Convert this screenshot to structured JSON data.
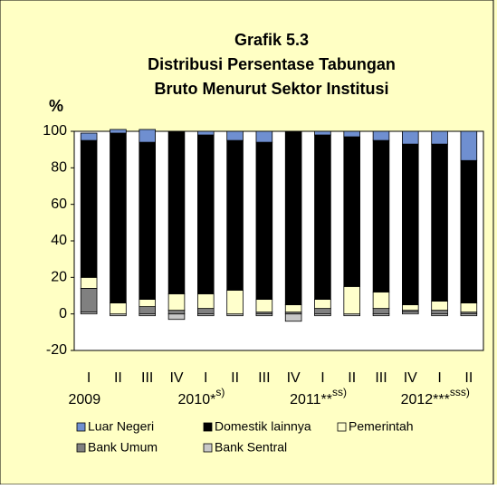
{
  "chart_data": {
    "type": "stacked_bar",
    "title": [
      "Grafik 5.3",
      "Distribusi Persentase Tabungan",
      "Bruto  Menurut Sektor Institusi"
    ],
    "y_label": "%",
    "categories": [
      "I",
      "II",
      "III",
      "IV",
      "I",
      "II",
      "III",
      "IV",
      "I",
      "II",
      "III",
      "IV",
      "I",
      "II"
    ],
    "groups": [
      {
        "label": "2009"
      },
      {
        "label": "2010*",
        "note": "s)"
      },
      {
        "label": "2011**",
        "note": "ss)"
      },
      {
        "label": "2012***",
        "note": "sss)"
      }
    ],
    "series": [
      {
        "name": "Luar Negeri",
        "color": "#6f8fd0",
        "values": [
          4,
          2,
          7,
          0,
          2,
          5,
          6,
          0,
          2,
          3,
          5,
          7,
          7,
          16
        ]
      },
      {
        "name": "Domestik lainnya",
        "color": "#000000",
        "values": [
          75,
          93,
          86,
          89,
          87,
          82,
          86,
          95,
          90,
          82,
          83,
          88,
          86,
          78
        ]
      },
      {
        "name": "Pemerintah",
        "color": "#ffffcc",
        "values": [
          6,
          6,
          4,
          9,
          8,
          13,
          7,
          4,
          5,
          15,
          9,
          3,
          5,
          5
        ]
      },
      {
        "name": "Bank Umum",
        "color": "#808080",
        "values": [
          13,
          0,
          4,
          2,
          3,
          0,
          1,
          1,
          3,
          0,
          3,
          1,
          2,
          1
        ]
      },
      {
        "name": "Bank Sentral",
        "color": "#c8c8c8",
        "values": [
          1,
          -1,
          -1,
          -3,
          -1,
          -1,
          -1,
          -4,
          -1,
          -1,
          -1,
          1,
          -1,
          -1
        ]
      }
    ],
    "ylim": [
      -20,
      100
    ],
    "yticks": [
      -20,
      0,
      20,
      40,
      60,
      80,
      100
    ],
    "grid": false
  }
}
